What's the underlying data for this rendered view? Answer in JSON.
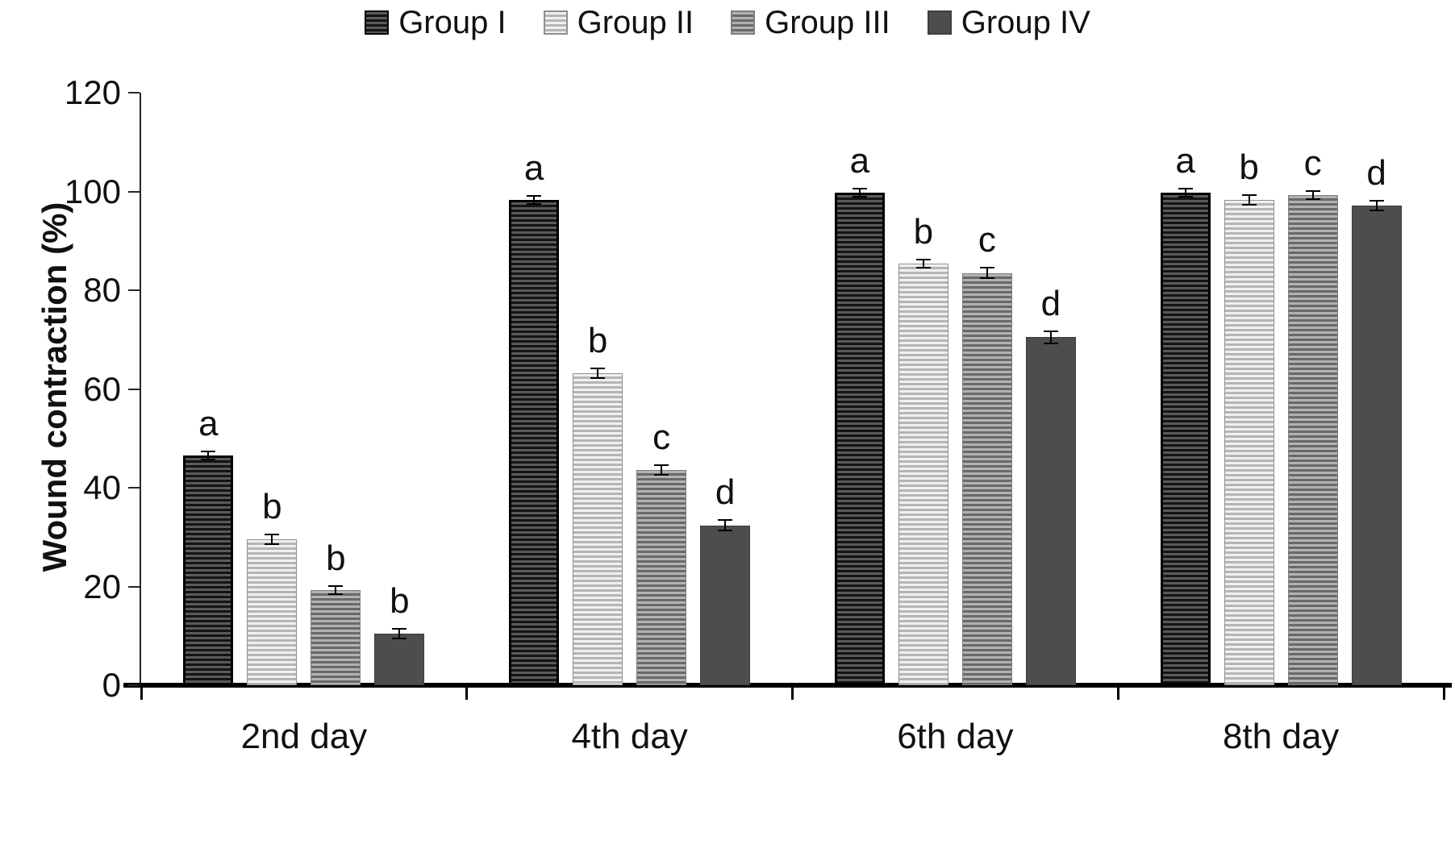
{
  "chart_data": {
    "type": "bar",
    "title": "",
    "xlabel": "",
    "ylabel": "Wound contraction (%)",
    "ylim": [
      0,
      120
    ],
    "yticks": [
      0,
      20,
      40,
      60,
      80,
      100,
      120
    ],
    "grid": false,
    "legend_position": "top",
    "categories": [
      "2nd day",
      "4th day",
      "6th day",
      "8th day"
    ],
    "series": [
      {
        "name": "Group I",
        "values": [
          46.5,
          98.3,
          99.8,
          99.8
        ],
        "errors": [
          0.5,
          0.8,
          0.8,
          0.8
        ],
        "sig_letters": [
          "a",
          "a",
          "a",
          "a"
        ],
        "color": "#5a5a5a",
        "stripe_color": "#141414",
        "border_color": "#000000",
        "border_width": 3
      },
      {
        "name": "Group II",
        "values": [
          29.5,
          63.2,
          85.4,
          98.3
        ],
        "errors": [
          1.0,
          1.0,
          0.8,
          1.0
        ],
        "sig_letters": [
          "b",
          "b",
          "b",
          "b"
        ],
        "color": "#f0f0f0",
        "stripe_color": "#b5b5b5",
        "border_color": "#8f8f8f",
        "border_width": 1
      },
      {
        "name": "Group III",
        "values": [
          19.3,
          43.6,
          83.5,
          99.3
        ],
        "errors": [
          0.5,
          1.0,
          1.0,
          0.8
        ],
        "sig_letters": [
          "b",
          "c",
          "c",
          "c"
        ],
        "color": "#b2b2b2",
        "stripe_color": "#696969",
        "border_color": "#7d7d7d",
        "border_width": 1
      },
      {
        "name": "Group IV",
        "values": [
          10.4,
          32.4,
          70.5,
          97.2
        ],
        "errors": [
          1.0,
          1.0,
          1.2,
          1.0
        ],
        "sig_letters": [
          "b",
          "d",
          "d",
          "d"
        ],
        "color": "#4d4d4d",
        "stripe_color": null,
        "border_color": "#3d3d3d",
        "border_width": 1
      }
    ]
  }
}
